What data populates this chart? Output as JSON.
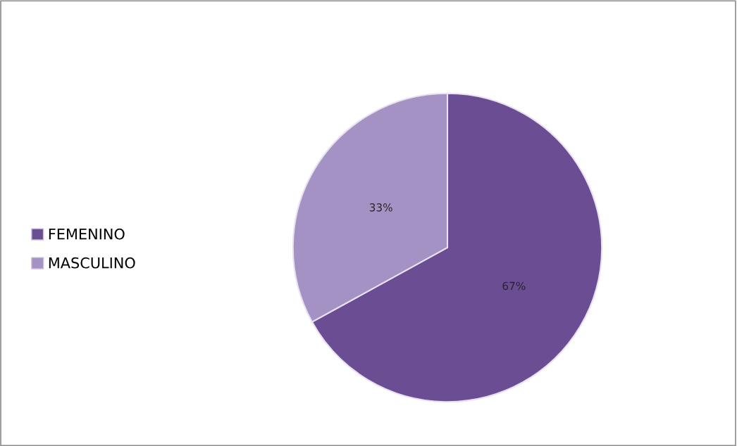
{
  "chart_data": {
    "type": "pie",
    "categories": [
      "FEMENINO",
      "MASCULINO"
    ],
    "values": [
      67,
      33
    ],
    "colors": [
      "#6b4d94",
      "#a592c4"
    ],
    "value_labels": [
      "67%",
      "33%"
    ],
    "legend": "left"
  }
}
